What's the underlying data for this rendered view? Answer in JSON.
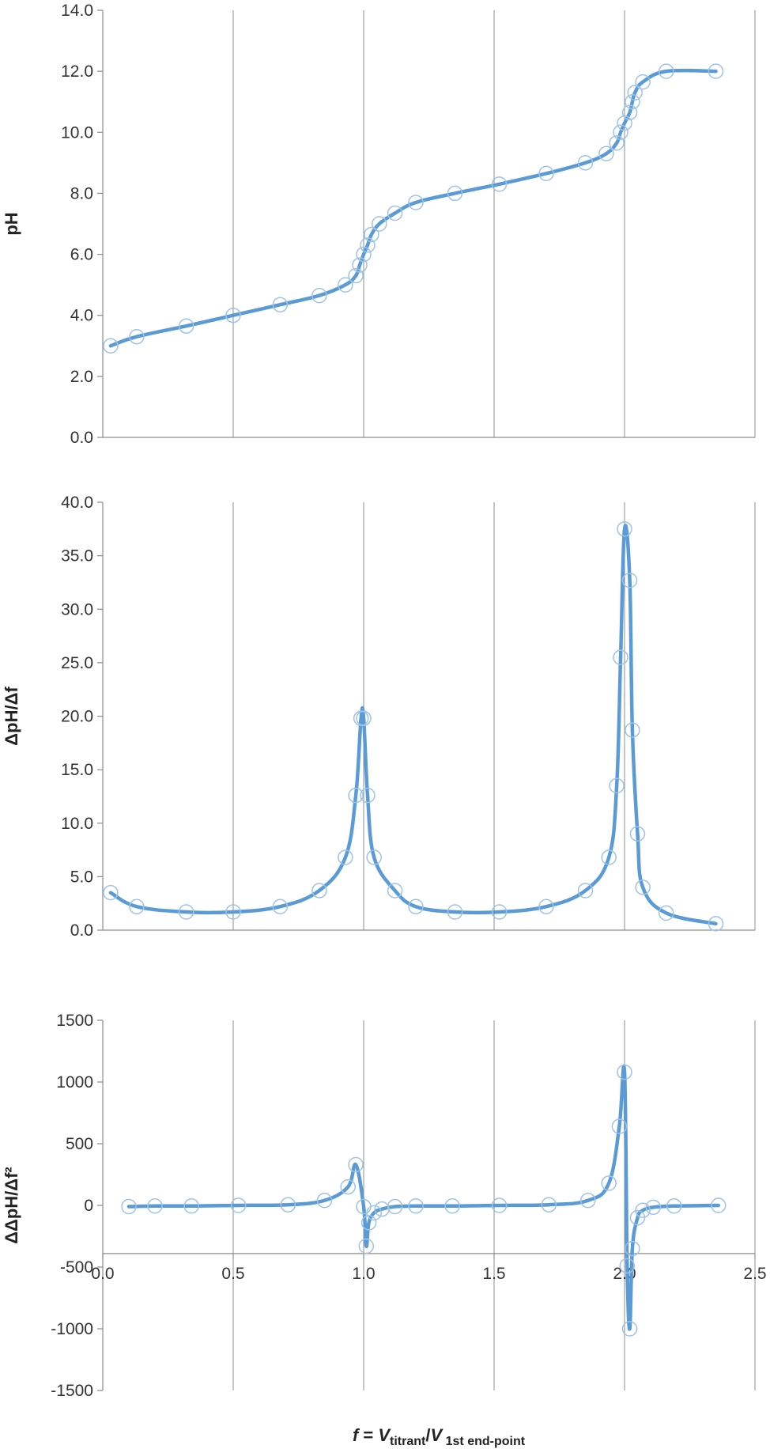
{
  "chart_data": [
    {
      "type": "line",
      "ylabel": "pH",
      "ylim": [
        0,
        14
      ],
      "y_ticks": [
        "0.0",
        "2.0",
        "4.0",
        "6.0",
        "8.0",
        "10.0",
        "12.0",
        "14.0"
      ],
      "xlim": [
        0,
        2.5
      ],
      "vertical_grid": [
        0.5,
        1.0,
        1.5,
        2.0,
        2.5
      ],
      "color": "#5b9bd5",
      "series": [
        {
          "x": [
            0.03,
            0.13,
            0.32,
            0.5,
            0.68,
            0.83,
            0.93,
            0.97,
            0.985,
            1.0,
            1.015,
            1.03,
            1.06,
            1.12,
            1.2,
            1.35,
            1.52,
            1.7,
            1.85,
            1.93,
            1.97,
            1.985,
            2.0,
            2.02,
            2.03,
            2.04,
            2.07,
            2.16,
            2.35
          ],
          "y": [
            3.0,
            3.3,
            3.65,
            4.0,
            4.35,
            4.65,
            5.0,
            5.3,
            5.65,
            6.0,
            6.3,
            6.65,
            7.0,
            7.35,
            7.7,
            8.0,
            8.3,
            8.65,
            9.0,
            9.3,
            9.65,
            10.0,
            10.3,
            10.65,
            11.0,
            11.3,
            11.65,
            12.0,
            12.0
          ]
        }
      ]
    },
    {
      "type": "line",
      "ylabel": "ΔpH/Δf",
      "ylim": [
        0,
        40
      ],
      "y_ticks": [
        "0.0",
        "5.0",
        "10.0",
        "15.0",
        "20.0",
        "25.0",
        "30.0",
        "35.0",
        "40.0"
      ],
      "xlim": [
        0,
        2.5
      ],
      "vertical_grid": [
        0.5,
        1.0,
        1.5,
        2.0,
        2.5
      ],
      "color": "#5b9bd5",
      "series": [
        {
          "x": [
            0.03,
            0.13,
            0.32,
            0.5,
            0.68,
            0.83,
            0.93,
            0.97,
            0.99,
            1.0,
            1.015,
            1.04,
            1.12,
            1.2,
            1.35,
            1.52,
            1.7,
            1.85,
            1.94,
            1.97,
            1.985,
            2.0,
            2.02,
            2.03,
            2.05,
            2.07,
            2.16,
            2.35
          ],
          "y": [
            3.5,
            2.2,
            1.7,
            1.7,
            2.2,
            3.7,
            6.8,
            12.6,
            19.8,
            19.8,
            12.6,
            6.8,
            3.7,
            2.2,
            1.7,
            1.7,
            2.2,
            3.7,
            6.8,
            13.5,
            25.5,
            37.5,
            32.7,
            18.7,
            9.0,
            4.0,
            1.6,
            0.6
          ]
        }
      ]
    },
    {
      "type": "line",
      "ylabel": "ΔΔpH/Δf²",
      "ylim": [
        -1500,
        1500
      ],
      "y_ticks": [
        "-1500",
        "-1000",
        "-500",
        "0",
        "500",
        "1000",
        "1500"
      ],
      "xlim": [
        0,
        2.5
      ],
      "x_ticks": [
        "0.0",
        "0.5",
        "1.0",
        "1.5",
        "2.0",
        "2.5"
      ],
      "x_axis_at": -390,
      "vertical_grid": [
        0.5,
        1.0,
        1.5,
        2.0,
        2.5
      ],
      "color": "#5b9bd5",
      "series": [
        {
          "x": [
            0.1,
            0.2,
            0.34,
            0.52,
            0.71,
            0.85,
            0.94,
            0.97,
            1.0,
            1.01,
            1.02,
            1.04,
            1.07,
            1.12,
            1.2,
            1.34,
            1.52,
            1.71,
            1.86,
            1.94,
            1.98,
            2.0,
            2.01,
            2.02,
            2.03,
            2.05,
            2.07,
            2.11,
            2.19,
            2.36
          ],
          "y": [
            -10,
            -5,
            -5,
            0,
            5,
            40,
            150,
            330,
            -10,
            -330,
            -140,
            -60,
            -30,
            -10,
            -5,
            -5,
            0,
            5,
            40,
            180,
            640,
            1080,
            -490,
            -1000,
            -350,
            -100,
            -40,
            -15,
            -5,
            0
          ]
        }
      ]
    }
  ],
  "xlabel": {
    "italic_f": "f",
    "equals": " = ",
    "v1": "V",
    "sub1": "titrant",
    "slash": "/",
    "v2": "V",
    "sub2": " 1st end-point"
  }
}
